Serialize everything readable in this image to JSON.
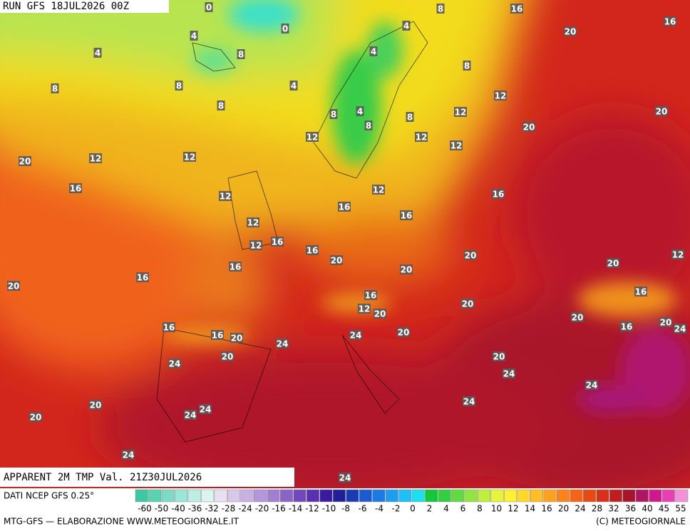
{
  "header": {
    "run": "RUN GFS 18JUL2026 00Z"
  },
  "map": {
    "title": "APPARENT 2M TMP Val. 21Z30JUL2026",
    "labels": [
      0,
      8,
      16,
      16,
      20,
      4,
      0,
      4,
      4,
      8,
      4,
      8,
      8,
      8,
      4,
      8,
      12,
      8,
      4,
      12,
      8,
      20,
      8,
      20,
      12,
      12,
      12,
      12,
      12,
      20,
      16,
      12,
      16,
      12,
      16,
      16,
      12,
      12,
      16,
      16,
      20,
      20,
      20,
      12,
      16,
      20,
      16,
      20,
      16,
      16,
      20,
      12,
      20,
      20,
      16,
      20,
      16,
      24,
      16,
      20,
      20,
      24,
      24,
      20,
      20,
      24,
      24,
      24,
      24,
      20,
      24,
      24,
      20,
      24,
      24
    ]
  },
  "legend": {
    "source": "DATI NCEP GFS 0.25°",
    "scale": [
      "-60",
      "-50",
      "-40",
      "-36",
      "-32",
      "-28",
      "-24",
      "-20",
      "-16",
      "-14",
      "-12",
      "-10",
      "-8",
      "-6",
      "-4",
      "-2",
      "0",
      "2",
      "4",
      "6",
      "8",
      "10",
      "12",
      "14",
      "16",
      "20",
      "24",
      "28",
      "32",
      "36",
      "40",
      "45",
      "55"
    ]
  },
  "footer": {
    "credit": "MTG-GFS — ELABORAZIONE WWW.METEOGIORNALE.IT",
    "copyright": "(C) METEOGIORNALE"
  }
}
